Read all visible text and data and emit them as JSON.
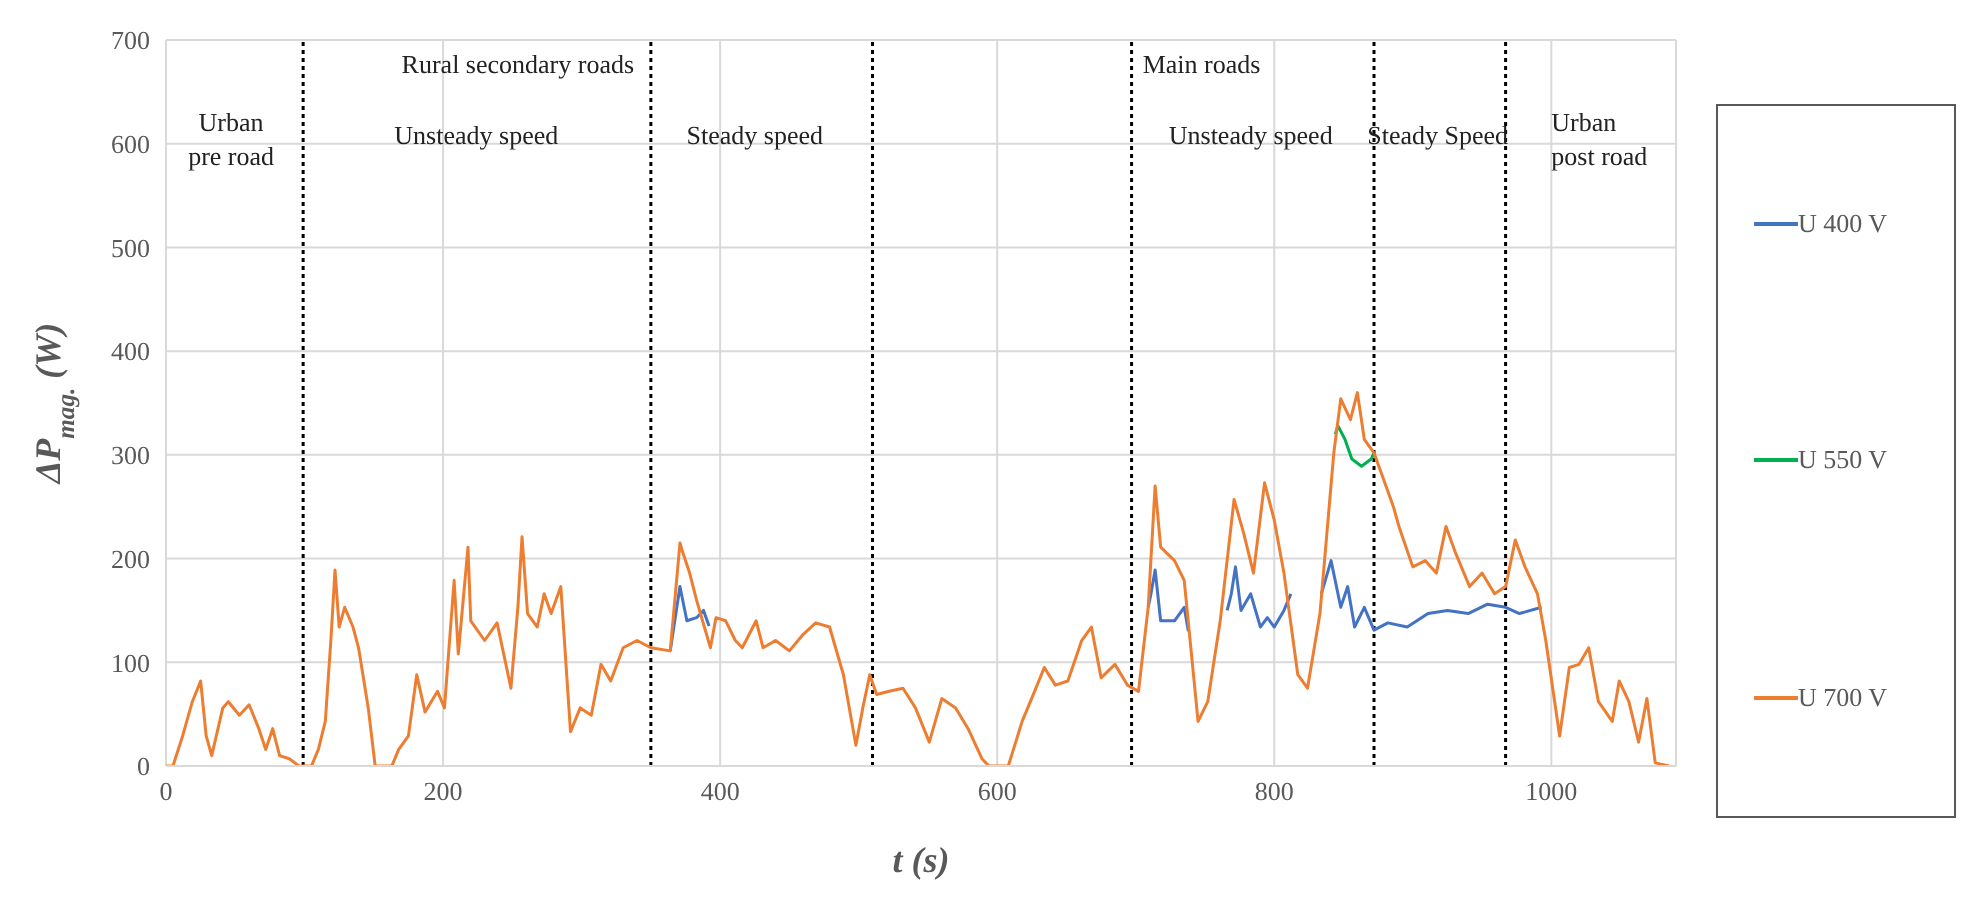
{
  "chart_data": {
    "type": "line",
    "xlabel": "t (s)",
    "ylabel": "ΔP$_{mag.}$ (W)",
    "xlim": [
      0,
      1090
    ],
    "xticks": [
      0,
      200,
      400,
      600,
      800,
      1000
    ],
    "ylim": [
      0,
      700
    ],
    "yticks": [
      0,
      100,
      200,
      300,
      400,
      500,
      600,
      700
    ],
    "grid": true,
    "legend": "right",
    "marker": "none",
    "line_style": "solid",
    "series": [
      {
        "name": "U 400 V",
        "color": "#4472c4",
        "x": [
          364,
          371,
          376,
          383,
          388,
          392,
          null,
          709,
          711,
          714,
          718,
          728,
          735,
          738,
          null,
          766,
          769,
          772,
          776,
          783,
          790,
          795,
          800,
          807,
          812,
          null,
          834,
          841,
          848,
          853,
          858,
          865,
          872,
          882,
          896,
          911,
          925,
          940,
          954,
          967,
          977,
          993
        ],
        "values": [
          111,
          173,
          140,
          143,
          150,
          135,
          null,
          153,
          166,
          189,
          140,
          140,
          153,
          130,
          null,
          150,
          166,
          192,
          150,
          166,
          134,
          143,
          134,
          150,
          166,
          null,
          166,
          198,
          153,
          173,
          134,
          153,
          131,
          138,
          134,
          147,
          150,
          147,
          156,
          153,
          147,
          153
        ]
      },
      {
        "name": "U 550 V",
        "color": "#00b050",
        "x": [
          844,
          846,
          851,
          856,
          863,
          870,
          872
        ],
        "values": [
          320,
          328,
          315,
          296,
          289,
          296,
          302
        ]
      },
      {
        "name": "U 700 V",
        "color": "#ed7d31",
        "x": [
          0,
          5,
          12,
          19,
          25,
          29,
          33,
          41,
          45,
          53,
          60,
          67,
          72,
          77,
          82,
          89,
          96,
          105,
          110,
          115,
          119,
          122,
          125,
          129,
          135,
          139,
          146,
          151,
          163,
          168,
          175,
          181,
          187,
          196,
          201,
          208,
          211,
          218,
          220,
          230,
          239,
          249,
          254,
          257,
          261,
          268,
          273,
          278,
          285,
          292,
          299,
          307,
          314,
          321,
          330,
          340,
          350,
          364,
          371,
          373,
          378,
          383,
          393,
          397,
          404,
          411,
          416,
          426,
          431,
          440,
          450,
          460,
          469,
          479,
          489,
          498,
          503,
          508,
          513,
          522,
          532,
          541,
          551,
          560,
          570,
          579,
          589,
          594,
          608,
          618,
          627,
          634,
          642,
          651,
          661,
          668,
          675,
          685,
          694,
          702,
          709,
          714,
          718,
          728,
          735,
          745,
          752,
          761,
          771,
          778,
          785,
          793,
          800,
          807,
          817,
          824,
          833,
          843,
          848,
          855,
          860,
          865,
          872,
          879,
          886,
          890,
          900,
          909,
          917,
          924,
          931,
          941,
          950,
          959,
          967,
          974,
          981,
          990,
          996,
          1006,
          1013,
          1020,
          1027,
          1034,
          1044,
          1049,
          1056,
          1063,
          1069,
          1075,
          1085
        ],
        "values": [
          0,
          0,
          29,
          62,
          82,
          29,
          10,
          56,
          62,
          49,
          59,
          36,
          16,
          36,
          10,
          7,
          0,
          0,
          16,
          43,
          121,
          189,
          134,
          153,
          134,
          114,
          56,
          0,
          0,
          16,
          29,
          88,
          52,
          72,
          56,
          179,
          108,
          211,
          140,
          121,
          138,
          75,
          153,
          221,
          147,
          134,
          166,
          147,
          173,
          33,
          56,
          49,
          98,
          82,
          114,
          121,
          114,
          111,
          215,
          206,
          186,
          160,
          114,
          143,
          140,
          121,
          114,
          140,
          114,
          121,
          111,
          127,
          138,
          134,
          88,
          20,
          56,
          88,
          69,
          72,
          75,
          56,
          23,
          65,
          56,
          36,
          7,
          0,
          0,
          43,
          72,
          95,
          78,
          82,
          121,
          134,
          85,
          98,
          78,
          72,
          153,
          270,
          211,
          198,
          179,
          43,
          62,
          140,
          257,
          224,
          186,
          273,
          237,
          186,
          88,
          75,
          147,
          302,
          354,
          334,
          360,
          315,
          302,
          276,
          250,
          231,
          192,
          198,
          186,
          231,
          205,
          173,
          186,
          166,
          173,
          218,
          192,
          166,
          121,
          29,
          95,
          98,
          114,
          62,
          43,
          82,
          62,
          23,
          65,
          3,
          0
        ]
      }
    ],
    "ref_lines": [
      {
        "axis": "x",
        "value": 99,
        "color": "#000000",
        "line_style": "dotted"
      },
      {
        "axis": "x",
        "value": 350,
        "color": "#000000",
        "line_style": "dotted"
      },
      {
        "axis": "x",
        "value": 510,
        "color": "#000000",
        "line_style": "dotted"
      },
      {
        "axis": "x",
        "value": 697,
        "color": "#000000",
        "line_style": "dotted"
      },
      {
        "axis": "x",
        "value": 872,
        "color": "#000000",
        "line_style": "dotted"
      },
      {
        "axis": "x",
        "value": 967,
        "color": "#000000",
        "line_style": "dotted"
      }
    ],
    "annotations": [
      "Rural secondary roads",
      "Urban\npre road",
      "Unsteady speed",
      "Steady speed",
      "Main roads",
      "Unsteady speed",
      "Steady Speed",
      "Urban\npost road"
    ]
  }
}
